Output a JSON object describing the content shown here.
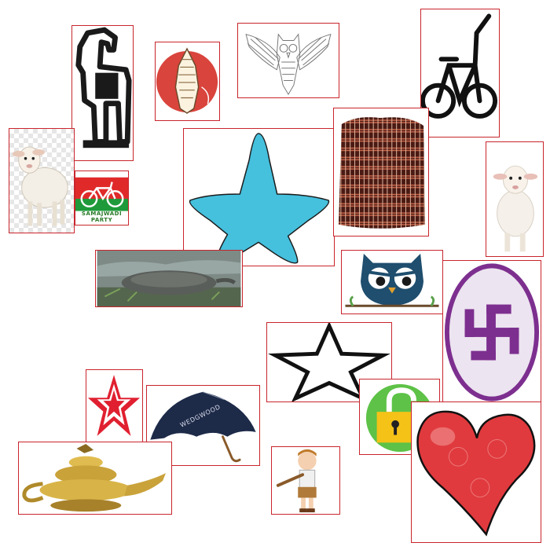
{
  "tiles": {
    "horse": {
      "icon": "horse-icon"
    },
    "conch": {
      "icon": "conch-shell-icon",
      "badge_color": "#d9443c"
    },
    "owl_outline": {
      "icon": "owl-outline-icon"
    },
    "bicycle": {
      "icon": "bicycle-icon"
    },
    "lamb_left": {
      "icon": "lamb-icon"
    },
    "party_logo": {
      "icon": "bicycle-party-logo-icon",
      "caption": "SAMAJWADI PARTY"
    },
    "blue_star": {
      "icon": "star-icon",
      "fill_color": "#45c0dd"
    },
    "basket": {
      "icon": "woven-basket-icon"
    },
    "lamb_right": {
      "icon": "lamb-icon"
    },
    "turtle": {
      "icon": "softshell-turtle-icon"
    },
    "owl_cartoon": {
      "icon": "owl-cartoon-icon",
      "color": "#1f4e6e"
    },
    "swastika": {
      "icon": "swastika-icon",
      "color": "#7d2f8f"
    },
    "star_outline": {
      "icon": "star-outline-icon"
    },
    "red_star": {
      "icon": "red-star-icon",
      "color": "#e02030"
    },
    "umbrella": {
      "icon": "umbrella-icon",
      "brand": "WEDGWOOD",
      "color": "#1d2a48"
    },
    "lock": {
      "icon": "lock-icon",
      "color": "#5dc247"
    },
    "heart": {
      "icon": "heart-icon",
      "color": "#e03a3e"
    },
    "lamp": {
      "icon": "genie-lamp-icon",
      "color": "#c9a23a"
    },
    "boy": {
      "icon": "boy-with-horn-icon"
    }
  }
}
